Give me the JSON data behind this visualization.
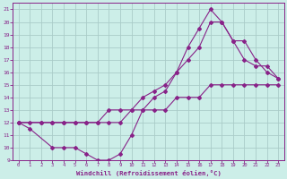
{
  "xlabel": "Windchill (Refroidissement éolien,°C)",
  "xlim": [
    -0.5,
    23.5
  ],
  "ylim": [
    9,
    21.5
  ],
  "xticks": [
    0,
    1,
    2,
    3,
    4,
    5,
    6,
    7,
    8,
    9,
    10,
    11,
    12,
    13,
    14,
    15,
    16,
    17,
    18,
    19,
    20,
    21,
    22,
    23
  ],
  "yticks": [
    9,
    10,
    11,
    12,
    13,
    14,
    15,
    16,
    17,
    18,
    19,
    20,
    21
  ],
  "background_color": "#cceee8",
  "grid_color": "#aaccc8",
  "line_color": "#882288",
  "line1_x": [
    0,
    1,
    2,
    3,
    4,
    5,
    6,
    7,
    8,
    9,
    10,
    11,
    12,
    13,
    14,
    15,
    16,
    17,
    18,
    19,
    20,
    21,
    22,
    23
  ],
  "line1_y": [
    12,
    12,
    12,
    12,
    12,
    12,
    12,
    12,
    12,
    12,
    13,
    13,
    13,
    13,
    14,
    14,
    14,
    15,
    15,
    15,
    15,
    15,
    15,
    15
  ],
  "line2_x": [
    0,
    1,
    3,
    4,
    5,
    6,
    7,
    8,
    9,
    10,
    11,
    12,
    13,
    14,
    15,
    16,
    17,
    18,
    19,
    20,
    21,
    22,
    23
  ],
  "line2_y": [
    12,
    11.5,
    10,
    10,
    10,
    9.5,
    9,
    9,
    9.5,
    11,
    13,
    14,
    14.5,
    16,
    18,
    19.5,
    21,
    20,
    18.5,
    17,
    16.5,
    16.5,
    15.5
  ],
  "line3_x": [
    0,
    2,
    3,
    4,
    5,
    6,
    7,
    8,
    9,
    10,
    11,
    12,
    13,
    14,
    15,
    16,
    17,
    18,
    19,
    20,
    21,
    22,
    23
  ],
  "line3_y": [
    12,
    12,
    12,
    12,
    12,
    12,
    12,
    13,
    13,
    13,
    14,
    14.5,
    15,
    16,
    17,
    18,
    20,
    20,
    18.5,
    18.5,
    17,
    16,
    15.5
  ]
}
